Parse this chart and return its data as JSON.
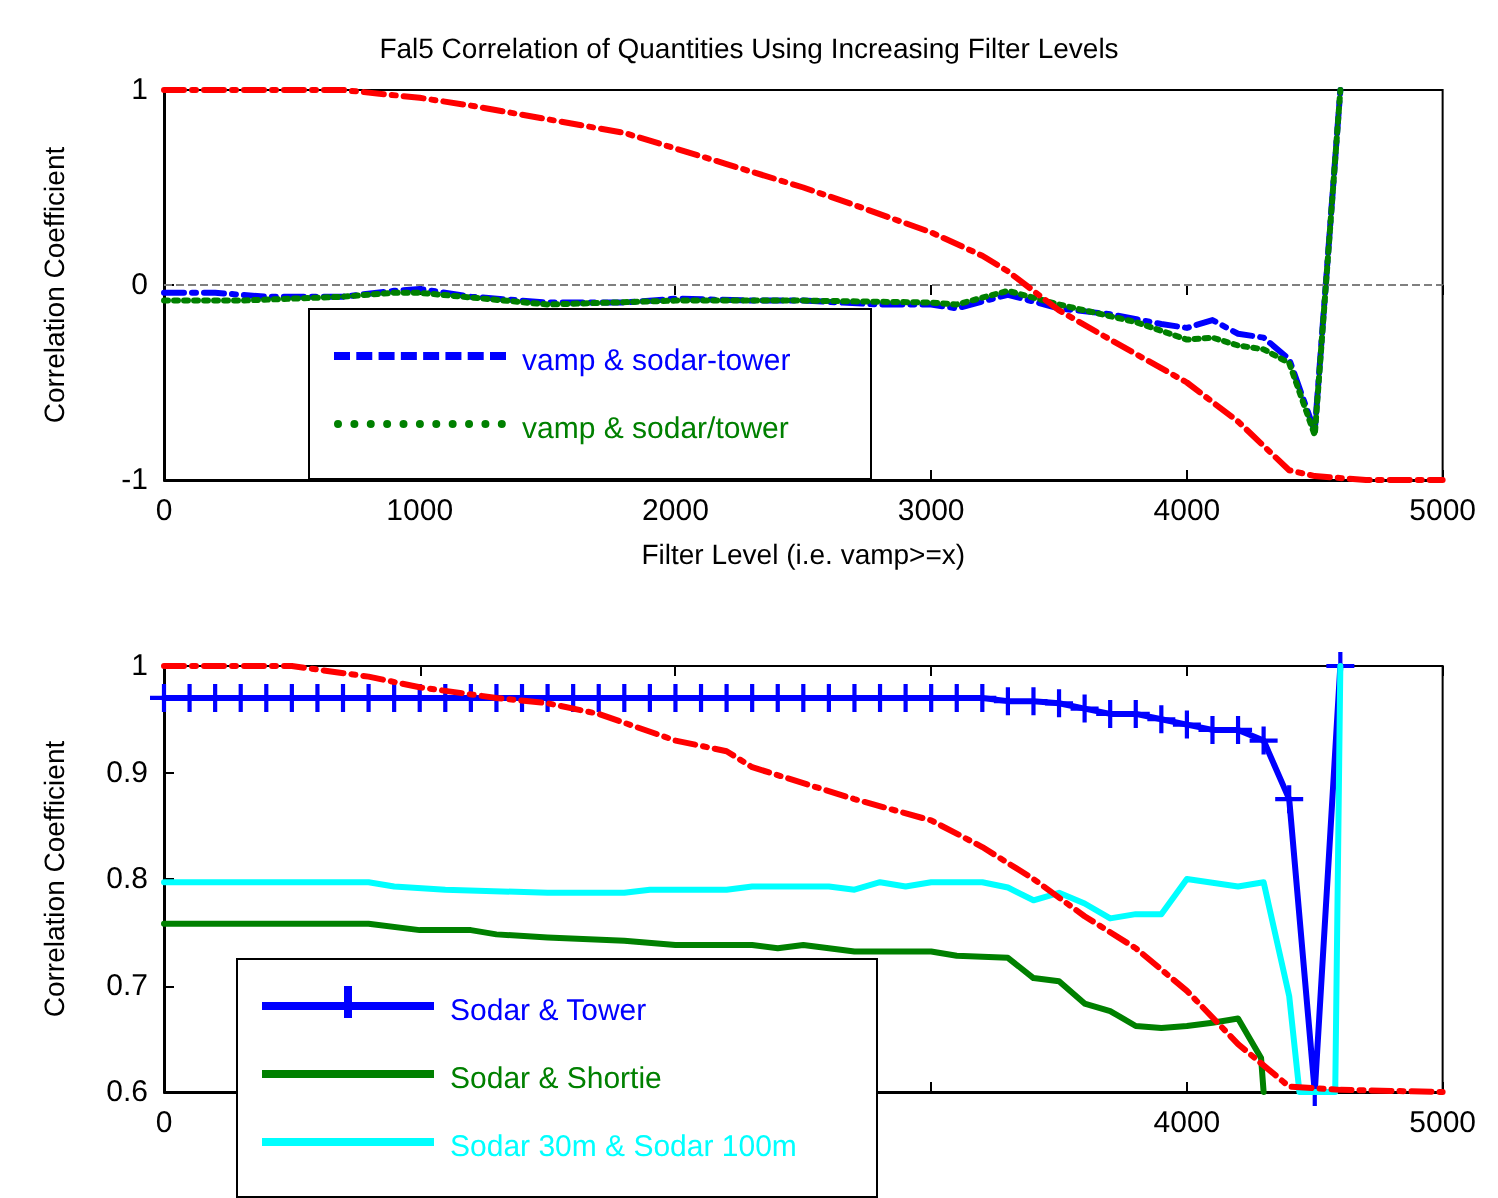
{
  "chart_data": [
    {
      "type": "line",
      "title": "Fal5 Correlation of Quantities Using Increasing Filter Levels",
      "xlabel": "Filter Level (i.e. vamp>=x)",
      "ylabel": "Correlation Coefficient",
      "xlim": [
        0,
        5000
      ],
      "xticks": [
        0,
        1000,
        2000,
        3000,
        4000,
        5000
      ],
      "ylim": [
        -1,
        1
      ],
      "yticks": [
        -1,
        0,
        1
      ],
      "grid": false,
      "legend": "bottom left",
      "marker": "none",
      "ref_lines": [
        {
          "axis": "y",
          "value": 0,
          "label": null,
          "color": "#808080",
          "line_style": "dashed"
        }
      ],
      "series": [
        {
          "name": "vamp & sodar-tower",
          "color": "#0000ff",
          "line_style": "dashed",
          "x": [
            0,
            200,
            400,
            700,
            900,
            1000,
            1200,
            1500,
            1800,
            2000,
            2300,
            2500,
            2800,
            3000,
            3100,
            3300,
            3500,
            3700,
            3900,
            4000,
            4100,
            4200,
            4300,
            4400,
            4500,
            4600
          ],
          "values": [
            -0.04,
            -0.04,
            -0.06,
            -0.06,
            -0.03,
            -0.02,
            -0.06,
            -0.09,
            -0.09,
            -0.07,
            -0.08,
            -0.08,
            -0.1,
            -0.1,
            -0.12,
            -0.05,
            -0.12,
            -0.15,
            -0.2,
            -0.22,
            -0.18,
            -0.25,
            -0.27,
            -0.38,
            -0.75,
            1
          ]
        },
        {
          "name": "vamp & sodar/tower",
          "color": "#008000",
          "line_style": "dotted",
          "x": [
            0,
            300,
            700,
            900,
            1000,
            1500,
            2000,
            2500,
            3000,
            3100,
            3300,
            3500,
            3800,
            4000,
            4100,
            4200,
            4300,
            4400,
            4500,
            4600
          ],
          "values": [
            -0.08,
            -0.08,
            -0.06,
            -0.04,
            -0.04,
            -0.1,
            -0.08,
            -0.08,
            -0.09,
            -0.1,
            -0.03,
            -0.1,
            -0.19,
            -0.28,
            -0.27,
            -0.31,
            -0.33,
            -0.4,
            -0.77,
            1
          ]
        },
        {
          "color": "#ff0000",
          "line_style": "dashed",
          "x": [
            0,
            500,
            700,
            1000,
            1200,
            1500,
            1800,
            2000,
            2200,
            2500,
            2700,
            3000,
            3200,
            3300,
            3400,
            3500,
            3700,
            4000,
            4200,
            4400,
            4500,
            4700,
            5000
          ],
          "values": [
            1,
            1,
            1,
            0.96,
            0.92,
            0.85,
            0.78,
            0.7,
            0.62,
            0.5,
            0.41,
            0.27,
            0.15,
            0.07,
            -0.03,
            -0.13,
            -0.28,
            -0.5,
            -0.7,
            -0.95,
            -0.98,
            -1,
            -1
          ]
        }
      ]
    },
    {
      "type": "line",
      "ylabel": "Correlation Coefficient",
      "xlim": [
        0,
        5000
      ],
      "xticks": [
        0,
        {
          "value": 1000,
          "label": null
        },
        {
          "value": 2000,
          "label": null
        },
        {
          "value": 3000,
          "label": null
        },
        4000,
        5000
      ],
      "ylim": [
        0.6,
        1
      ],
      "yticks": [
        0.6,
        0.7,
        0.8,
        0.9,
        1
      ],
      "grid": false,
      "legend": "bottom left",
      "series": [
        {
          "name": "Sodar & Tower",
          "color": "#0000ff",
          "line_style": "solid",
          "marker": "cross",
          "x": [
            0,
            100,
            200,
            300,
            400,
            500,
            600,
            700,
            800,
            900,
            1000,
            1100,
            1200,
            1300,
            1400,
            1500,
            1600,
            1700,
            1800,
            1900,
            2000,
            2100,
            2200,
            2300,
            2400,
            2500,
            2600,
            2700,
            2800,
            2900,
            3000,
            3100,
            3200,
            3300,
            3400,
            3500,
            3600,
            3700,
            3800,
            3900,
            4000,
            4100,
            4200,
            4300,
            4400,
            4500,
            4600
          ],
          "values": [
            0.97,
            0.97,
            0.97,
            0.97,
            0.97,
            0.97,
            0.97,
            0.97,
            0.97,
            0.97,
            0.97,
            0.97,
            0.97,
            0.97,
            0.97,
            0.97,
            0.97,
            0.97,
            0.97,
            0.97,
            0.97,
            0.97,
            0.97,
            0.97,
            0.97,
            0.97,
            0.97,
            0.97,
            0.97,
            0.97,
            0.97,
            0.97,
            0.97,
            0.967,
            0.967,
            0.965,
            0.96,
            0.955,
            0.955,
            0.95,
            0.945,
            0.94,
            0.94,
            0.93,
            0.875,
            0.6,
            1
          ]
        },
        {
          "name": "Sodar & Shortie",
          "color": "#008000",
          "line_style": "solid",
          "marker": "none",
          "x": [
            0,
            800,
            1000,
            1200,
            1300,
            1500,
            1800,
            2000,
            2300,
            2400,
            2500,
            2700,
            3000,
            3100,
            3300,
            3400,
            3500,
            3600,
            3700,
            3800,
            3900,
            4000,
            4100,
            4200,
            4290,
            4300
          ],
          "values": [
            0.758,
            0.758,
            0.752,
            0.752,
            0.748,
            0.745,
            0.742,
            0.738,
            0.738,
            0.735,
            0.738,
            0.732,
            0.732,
            0.728,
            0.726,
            0.707,
            0.704,
            0.683,
            0.676,
            0.662,
            0.66,
            0.662,
            0.665,
            0.669,
            0.632,
            0.6
          ]
        },
        {
          "name": "Sodar 30m & Sodar 100m",
          "color": "#00ffff",
          "line_style": "solid",
          "marker": "none",
          "x": [
            0,
            800,
            900,
            1100,
            1500,
            1800,
            1900,
            2200,
            2300,
            2600,
            2700,
            2800,
            2900,
            3000,
            3200,
            3300,
            3400,
            3500,
            3600,
            3700,
            3800,
            3900,
            4000,
            4200,
            4300,
            4400,
            4440,
            4580,
            4600
          ],
          "values": [
            0.797,
            0.797,
            0.793,
            0.79,
            0.787,
            0.787,
            0.79,
            0.79,
            0.793,
            0.793,
            0.79,
            0.797,
            0.793,
            0.797,
            0.797,
            0.792,
            0.78,
            0.787,
            0.777,
            0.763,
            0.767,
            0.767,
            0.8,
            0.793,
            0.797,
            0.69,
            0.6,
            0.6,
            1
          ]
        },
        {
          "color": "#ff0000",
          "line_style": "dashed",
          "marker": "none",
          "x": [
            0,
            500,
            800,
            1000,
            1300,
            1500,
            1700,
            2000,
            2200,
            2300,
            2500,
            2700,
            3000,
            3200,
            3400,
            3600,
            3800,
            4000,
            4200,
            4300,
            4400,
            4600,
            5000
          ],
          "values": [
            1,
            1,
            0.99,
            0.98,
            0.97,
            0.965,
            0.955,
            0.93,
            0.92,
            0.905,
            0.89,
            0.875,
            0.855,
            0.83,
            0.8,
            0.765,
            0.735,
            0.695,
            0.645,
            0.625,
            0.605,
            0.602,
            0.6
          ]
        }
      ]
    }
  ]
}
